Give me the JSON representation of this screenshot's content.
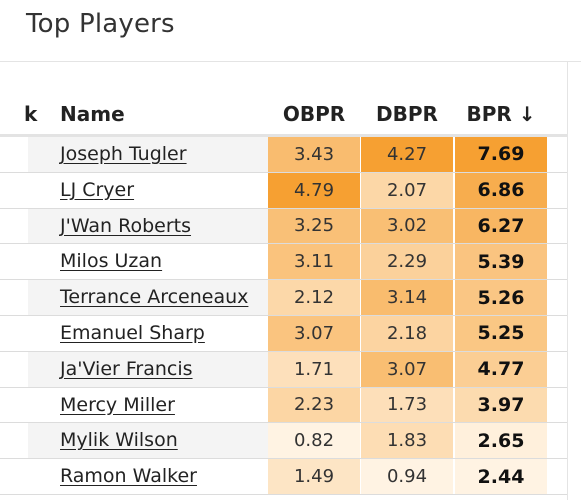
{
  "header": {
    "title": "Top Players"
  },
  "table": {
    "columns": {
      "rank": "k",
      "name": "Name",
      "obpr": "OBPR",
      "dbpr": "DBPR",
      "bpr": "BPR ↓"
    },
    "rows": [
      {
        "name": "Joseph Tugler",
        "obpr": "3.43",
        "dbpr": "4.27",
        "bpr": "7.69"
      },
      {
        "name": "LJ Cryer",
        "obpr": "4.79",
        "dbpr": "2.07",
        "bpr": "6.86"
      },
      {
        "name": "J'Wan Roberts",
        "obpr": "3.25",
        "dbpr": "3.02",
        "bpr": "6.27"
      },
      {
        "name": "Milos Uzan",
        "obpr": "3.11",
        "dbpr": "2.29",
        "bpr": "5.39"
      },
      {
        "name": "Terrance Arceneaux",
        "obpr": "2.12",
        "dbpr": "3.14",
        "bpr": "5.26"
      },
      {
        "name": "Emanuel Sharp",
        "obpr": "3.07",
        "dbpr": "2.18",
        "bpr": "5.25"
      },
      {
        "name": "Ja'Vier Francis",
        "obpr": "1.71",
        "dbpr": "3.07",
        "bpr": "4.77"
      },
      {
        "name": "Mercy Miller",
        "obpr": "2.23",
        "dbpr": "1.73",
        "bpr": "3.97"
      },
      {
        "name": "Mylik Wilson",
        "obpr": "0.82",
        "dbpr": "1.83",
        "bpr": "2.65"
      },
      {
        "name": "Ramon Walker",
        "obpr": "1.49",
        "dbpr": "0.94",
        "bpr": "2.44"
      }
    ]
  },
  "colors": {
    "heat_low": "#fff3e3",
    "heat_high": "#f6a032"
  }
}
